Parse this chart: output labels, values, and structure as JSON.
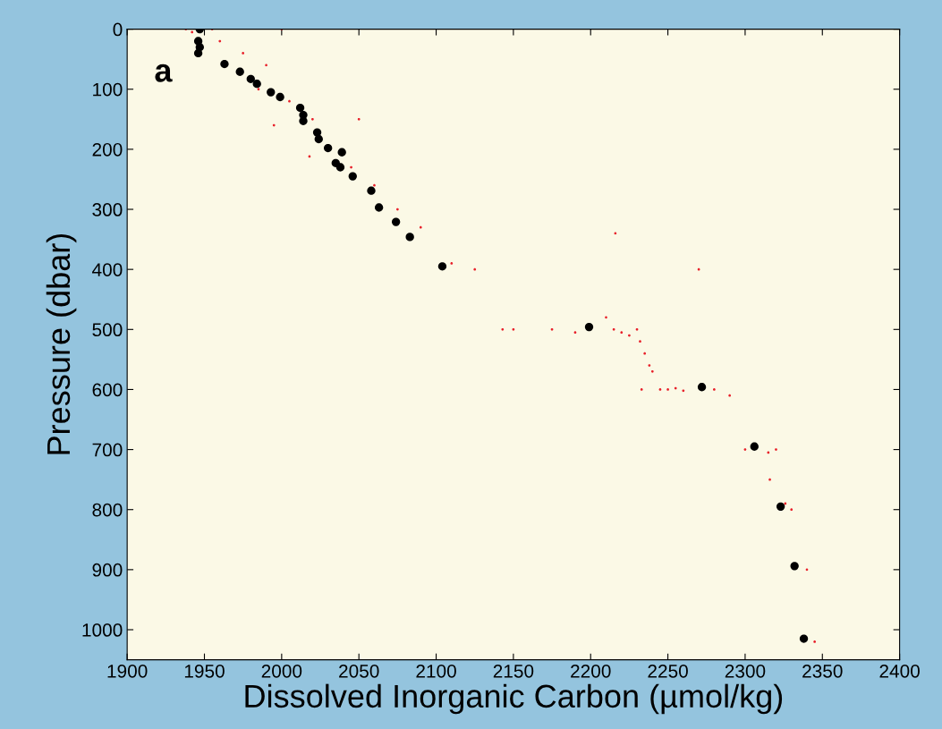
{
  "chart_data": {
    "type": "scatter",
    "xlabel": "Dissolved Inorganic Carbon (µmol/kg)",
    "ylabel": "Pressure (dbar)",
    "annotations": [
      "a"
    ],
    "xlim": [
      1900,
      2400
    ],
    "xticks": [
      1900,
      1950,
      2000,
      2050,
      2100,
      2150,
      2200,
      2250,
      2300,
      2350,
      2400
    ],
    "ylim": [
      1050,
      0
    ],
    "yticks": [
      0,
      100,
      200,
      300,
      400,
      500,
      600,
      700,
      800,
      900,
      1000
    ],
    "grid": false,
    "legend": false,
    "marker": "circle",
    "series": [
      {
        "color": "#e8202a",
        "x": [
          1938,
          1942,
          1960,
          1975,
          1990,
          2000,
          1955,
          1985,
          2005,
          2020,
          1995,
          2018,
          2045,
          2050,
          2060,
          2075,
          2090,
          2110,
          2125,
          2143,
          2150,
          2175,
          2190,
          2210,
          2215,
          2220,
          2225,
          2230,
          2232,
          2235,
          2238,
          2240,
          2245,
          2250,
          2255,
          2260,
          2233,
          2280,
          2290,
          2300,
          2315,
          2320,
          2316,
          2326,
          2330,
          2340,
          2345,
          2216,
          2270
        ],
        "values": [
          0,
          5,
          20,
          40,
          60,
          0,
          0,
          100,
          120,
          150,
          160,
          212,
          230,
          150,
          260,
          300,
          330,
          390,
          400,
          500,
          500,
          500,
          505,
          480,
          500,
          505,
          510,
          500,
          520,
          540,
          560,
          570,
          600,
          600,
          598,
          602,
          600,
          600,
          610,
          700,
          705,
          700,
          750,
          790,
          800,
          900,
          1020,
          340,
          400
        ]
      },
      {
        "color": "#000000",
        "x": [
          1947,
          1946,
          1947,
          1946,
          1963,
          1973,
          1980,
          1984,
          1993,
          1999,
          2012,
          2014,
          2014,
          2023,
          2024,
          2030,
          2039,
          2035,
          2038,
          2046,
          2058,
          2063,
          2074,
          2083,
          2104,
          2199,
          2272,
          2306,
          2323,
          2332,
          2338
        ],
        "values": [
          0,
          20,
          30,
          40,
          58,
          71,
          83,
          91,
          105,
          113,
          131,
          143,
          153,
          172,
          183,
          198,
          205,
          223,
          230,
          245,
          269,
          297,
          321,
          346,
          395,
          496,
          596,
          695,
          795,
          894,
          1015
        ]
      }
    ]
  }
}
